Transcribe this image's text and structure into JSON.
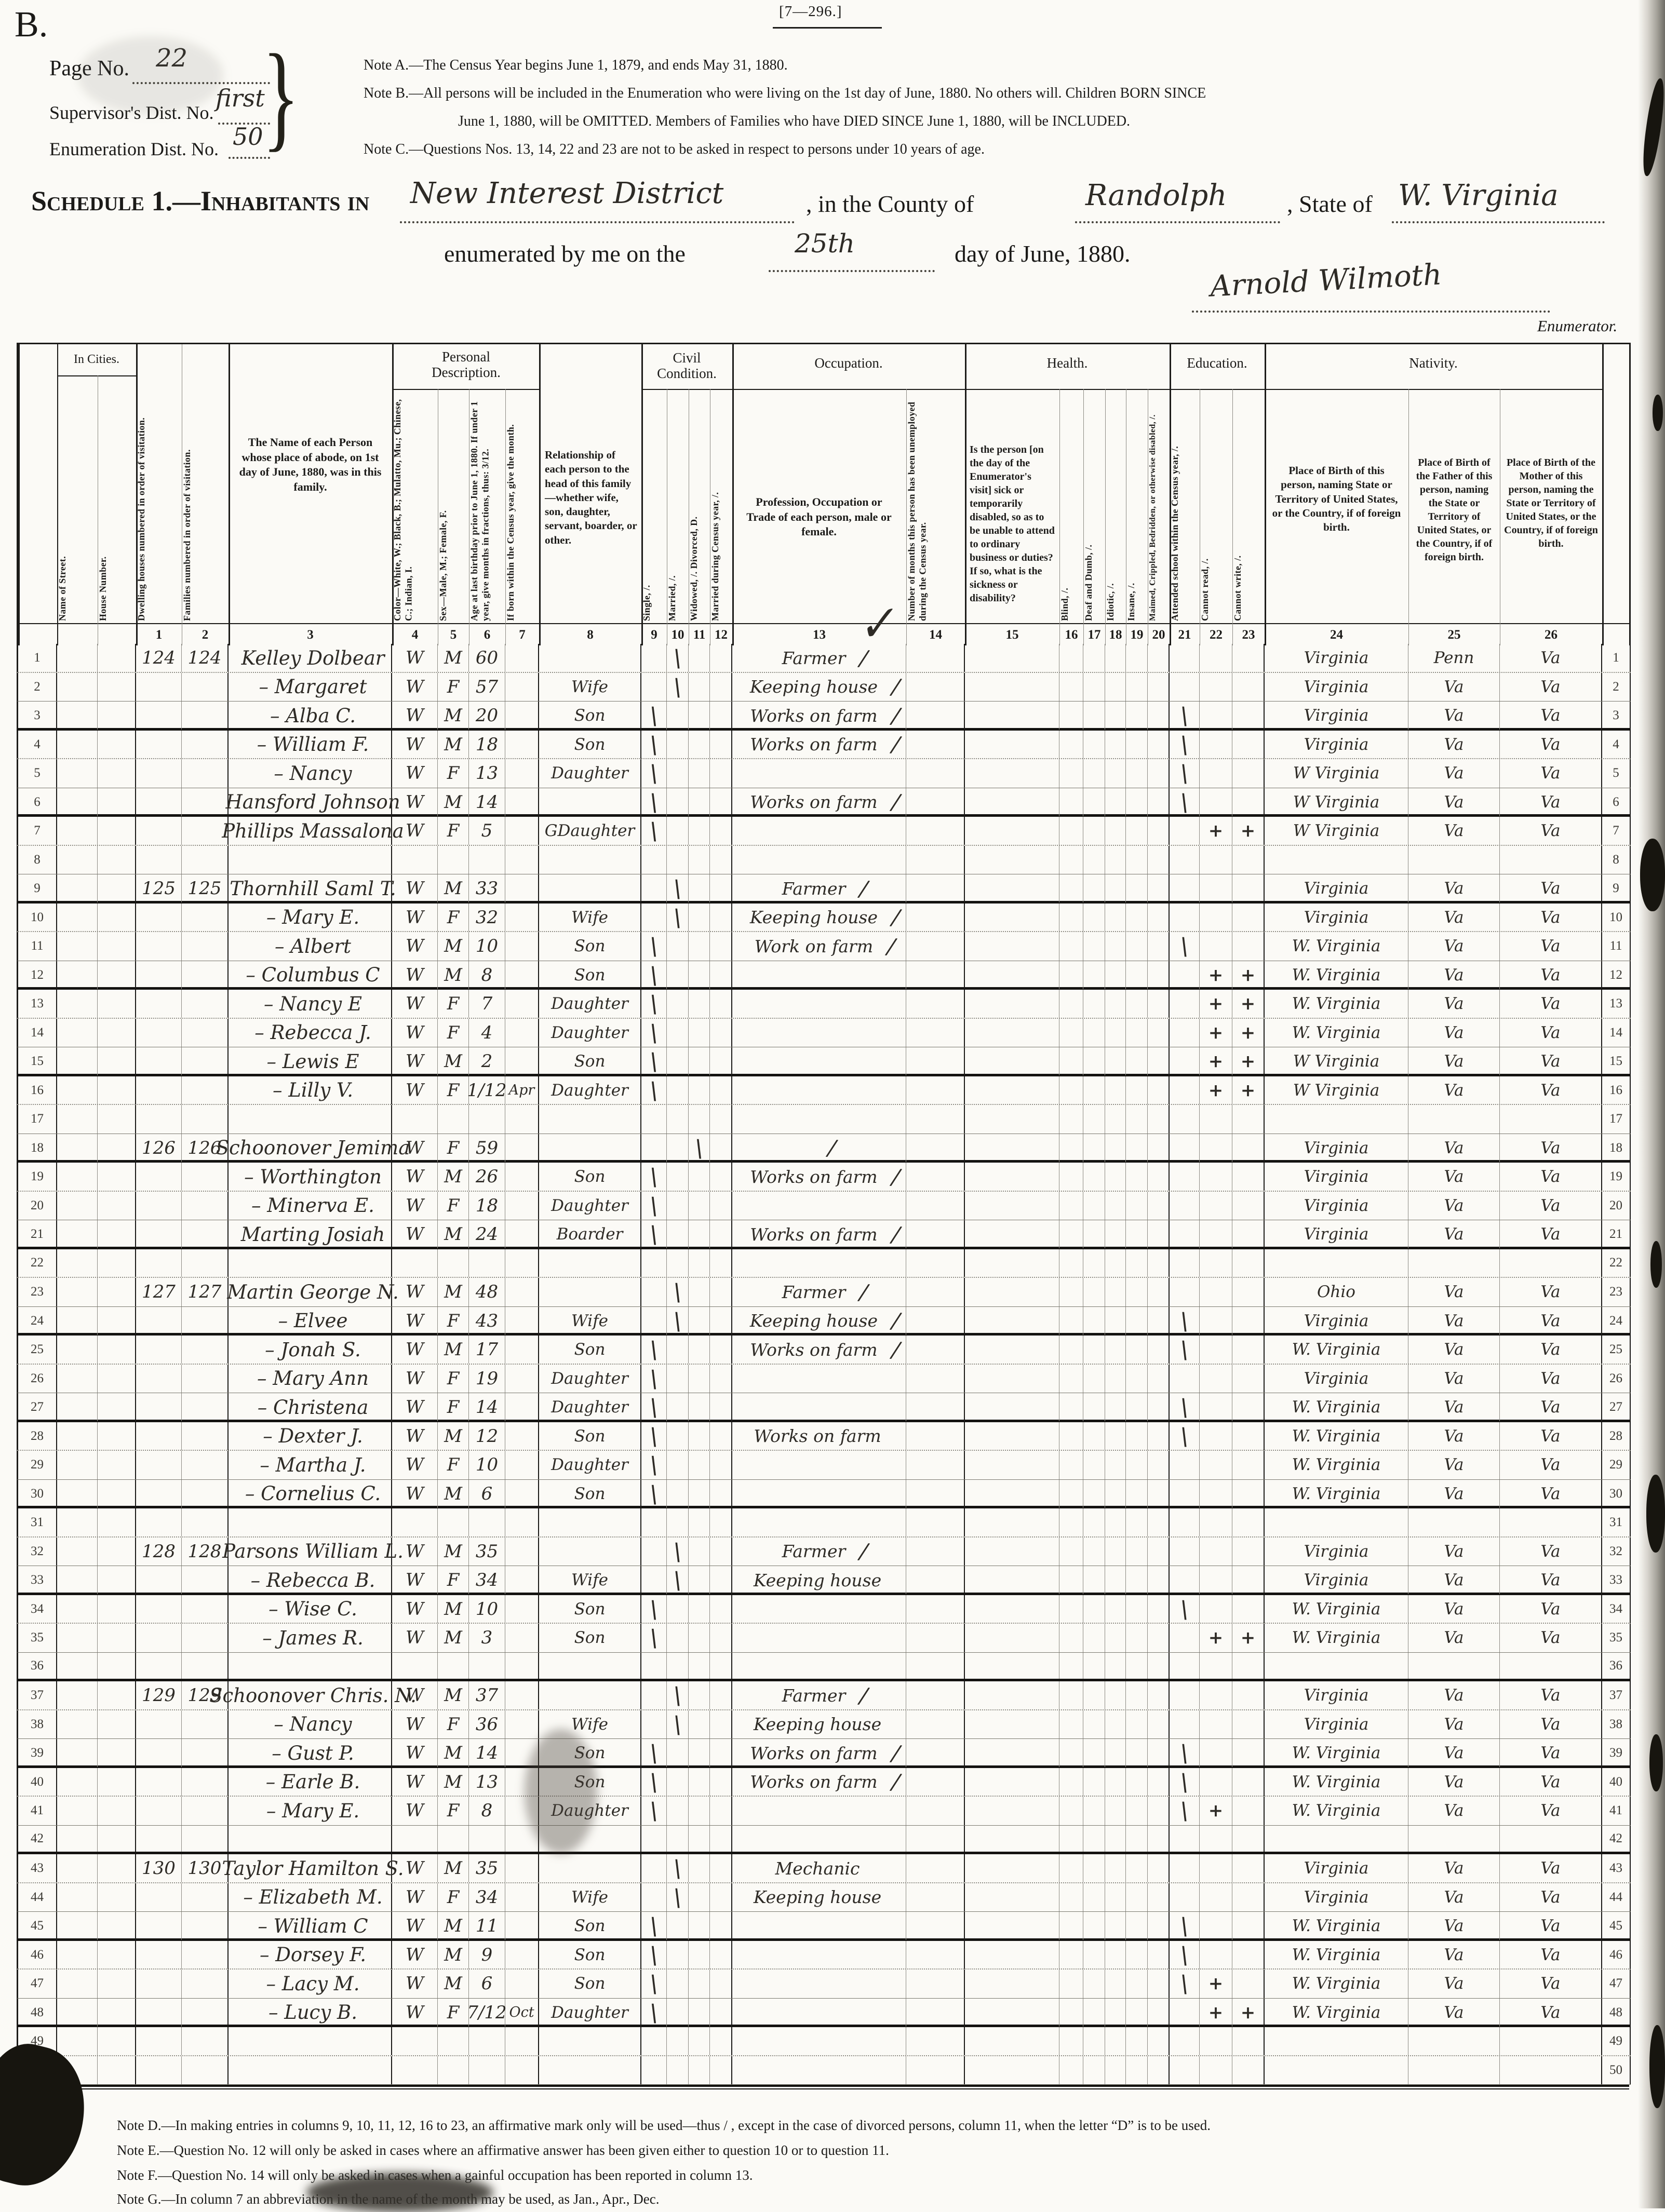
{
  "form": {
    "corner_letter": "B.",
    "form_number": "[7—296.]",
    "page_no_label": "Page No.",
    "page_no": "22",
    "supervisor_label": "Supervisor's Dist. No.",
    "supervisor_no": "first",
    "enumeration_label": "Enumeration Dist. No.",
    "enumeration_no": "50",
    "brace": "}",
    "note_a": "Note A.—The Census Year begins June 1, 1879, and ends May 31, 1880.",
    "note_b1": "Note B.—All persons will be included in the Enumeration who were living on the 1st day of June, 1880.  No others will.  Children BORN SINCE",
    "note_b2": "June 1, 1880, will be OMITTED.  Members of Families who have DIED SINCE June 1, 1880, will be INCLUDED.",
    "note_c": "Note C.—Questions Nos. 13, 14, 22 and 23 are not to be asked in respect to persons under 10 years of age.",
    "schedule_title": "Schedule 1.—Inhabitants in",
    "district": "New Interest District",
    "county_label": ", in the County of",
    "county": "Randolph",
    "state_label": ", State of",
    "state": "W. Virginia",
    "enumerated_label": "enumerated by me on the",
    "enumerated_day": "25th",
    "enumerated_label2": "day of June, 1880.",
    "signature": "Arnold Wilmoth",
    "enumerator_label": "Enumerator.",
    "stray_check": "✓"
  },
  "table": {
    "groups": {
      "in_cities": "In Cities.",
      "personal": "Personal Description.",
      "civil": "Civil Condition.",
      "occupation": "Occupation.",
      "health": "Health.",
      "education": "Education.",
      "nativity": "Nativity."
    },
    "columns": {
      "street": "Name of Street.",
      "house": "House Number.",
      "c1": "Dwelling houses numbered in order of visitation.",
      "c2": "Families numbered in order of visitation.",
      "c3": "The Name of each Person whose place of abode, on 1st day of June, 1880, was in this family.",
      "c4": "Color—White, W.; Black, B.; Mulatto, Mu.; Chinese, C.; Indian, I.",
      "c5": "Sex—Male, M.; Female, F.",
      "c6": "Age at last birthday prior to June 1, 1880.  If under 1 year, give months in fractions, thus: 3/12.",
      "c7": "If born within the Census year, give the month.",
      "c8": "Relationship of each person to the head of this family—whether wife, son, daughter, servant, boarder, or other.",
      "c9": "Single, /.",
      "c10": "Married, /.",
      "c11": "Widowed, /.  Divorced, D.",
      "c12": "Married during Census year, /.",
      "c13": "Profession, Occupation or Trade of each person, male or female.",
      "c14": "Number of months this person has been unemployed during the Census year.",
      "c15": "Is the person [on the day of the Enumerator's visit] sick or temporarily disabled, so as to be unable to attend to ordinary business or duties?  If so, what is the sickness or disability?",
      "c16": "Blind, /.",
      "c17": "Deaf and Dumb, /.",
      "c18": "Idiotic, /.",
      "c19": "Insane, /.",
      "c20": "Maimed, Crippled, Bedridden, or otherwise disabled, /.",
      "c21": "Attended school within the Census year, /.",
      "c22": "Cannot read, /.",
      "c23": "Cannot write, /.",
      "c24": "Place of Birth of this person, naming State or Territory of United States, or the Country, if of foreign birth.",
      "c25": "Place of Birth of the Father of this person, naming the State or Territory of United States, or the Country, if of foreign birth.",
      "c26": "Place of Birth of the Mother of this person, naming the State or Territory of United States, or the Country, if of foreign birth."
    },
    "numbers": [
      "1",
      "2",
      "3",
      "4",
      "5",
      "6",
      "7",
      "8",
      "9",
      "10",
      "11",
      "12",
      "13",
      "14",
      "15",
      "16",
      "17",
      "18",
      "19",
      "20",
      "21",
      "22",
      "23",
      "24",
      "25",
      "26"
    ],
    "rows": [
      {
        "n": "1",
        "dw": "124",
        "fam": "124",
        "name": "Kelley Dolbear",
        "c": "W",
        "s": "M",
        "a": "60",
        "m10": "\\",
        "occ": "Farmer",
        "ok": "/",
        "pb": "Virginia",
        "pf": "Penn",
        "pm": "Va"
      },
      {
        "n": "2",
        "name": "– Margaret",
        "c": "W",
        "s": "F",
        "a": "57",
        "rel": "Wife",
        "m10": "\\",
        "occ": "Keeping house",
        "ok": "/",
        "pb": "Virginia",
        "pf": "Va",
        "pm": "Va"
      },
      {
        "n": "3",
        "name": "– Alba C.",
        "c": "W",
        "s": "M",
        "a": "20",
        "rel": "Son",
        "m9": "\\",
        "occ": "Works on farm",
        "ok": "/",
        "s21": "\\",
        "pb": "Virginia",
        "pf": "Va",
        "pm": "Va"
      },
      {
        "n": "4",
        "name": "– William F.",
        "c": "W",
        "s": "M",
        "a": "18",
        "rel": "Son",
        "m9": "\\",
        "occ": "Works on farm",
        "ok": "/",
        "s21": "\\",
        "pb": "Virginia",
        "pf": "Va",
        "pm": "Va"
      },
      {
        "n": "5",
        "name": "– Nancy",
        "c": "W",
        "s": "F",
        "a": "13",
        "rel": "Daughter",
        "m9": "\\",
        "s21": "\\",
        "pb": "W Virginia",
        "pf": "Va",
        "pm": "Va"
      },
      {
        "n": "6",
        "name": "Hansford Johnson",
        "c": "W",
        "s": "M",
        "a": "14",
        "m9": "\\",
        "occ": "Works on farm",
        "ok": "/",
        "s21": "\\",
        "pb": "W Virginia",
        "pf": "Va",
        "pm": "Va"
      },
      {
        "n": "7",
        "name": "Phillips Massalona",
        "c": "W",
        "s": "F",
        "a": "5",
        "rel": "GDaughter",
        "m9": "\\",
        "r22": "+",
        "w23": "+",
        "pb": "W Virginia",
        "pf": "Va",
        "pm": "Va"
      },
      {
        "n": "8"
      },
      {
        "n": "9",
        "dw": "125",
        "fam": "125",
        "name": "Thornhill Saml T.",
        "c": "W",
        "s": "M",
        "a": "33",
        "m10": "\\",
        "occ": "Farmer",
        "ok": "/",
        "pb": "Virginia",
        "pf": "Va",
        "pm": "Va"
      },
      {
        "n": "10",
        "name": "– Mary E.",
        "c": "W",
        "s": "F",
        "a": "32",
        "rel": "Wife",
        "m10": "\\",
        "occ": "Keeping house",
        "ok": "/",
        "pb": "Virginia",
        "pf": "Va",
        "pm": "Va"
      },
      {
        "n": "11",
        "name": "– Albert",
        "c": "W",
        "s": "M",
        "a": "10",
        "rel": "Son",
        "m9": "\\",
        "occ": "Work on farm",
        "ok": "/",
        "s21": "\\",
        "pb": "W. Virginia",
        "pf": "Va",
        "pm": "Va"
      },
      {
        "n": "12",
        "name": "– Columbus C",
        "c": "W",
        "s": "M",
        "a": "8",
        "rel": "Son",
        "m9": "\\",
        "r22": "+",
        "w23": "+",
        "pb": "W. Virginia",
        "pf": "Va",
        "pm": "Va"
      },
      {
        "n": "13",
        "name": "– Nancy E",
        "c": "W",
        "s": "F",
        "a": "7",
        "rel": "Daughter",
        "m9": "\\",
        "r22": "+",
        "w23": "+",
        "pb": "W. Virginia",
        "pf": "Va",
        "pm": "Va"
      },
      {
        "n": "14",
        "name": "– Rebecca J.",
        "c": "W",
        "s": "F",
        "a": "4",
        "rel": "Daughter",
        "m9": "\\",
        "r22": "+",
        "w23": "+",
        "pb": "W. Virginia",
        "pf": "Va",
        "pm": "Va"
      },
      {
        "n": "15",
        "name": "– Lewis E",
        "c": "W",
        "s": "M",
        "a": "2",
        "rel": "Son",
        "m9": "\\",
        "r22": "+",
        "w23": "+",
        "pb": "W Virginia",
        "pf": "Va",
        "pm": "Va"
      },
      {
        "n": "16",
        "name": "– Lilly V.",
        "c": "W",
        "s": "F",
        "a": "1/12",
        "mo": "Apr",
        "rel": "Daughter",
        "m9": "\\",
        "r22": "+",
        "w23": "+",
        "pb": "W Virginia",
        "pf": "Va",
        "pm": "Va"
      },
      {
        "n": "17"
      },
      {
        "n": "18",
        "dw": "126",
        "fam": "126",
        "name": "Schoonover Jemima",
        "c": "W",
        "s": "F",
        "a": "59",
        "m11": "\\",
        "ok": "/",
        "pb": "Virginia",
        "pf": "Va",
        "pm": "Va"
      },
      {
        "n": "19",
        "name": "– Worthington",
        "c": "W",
        "s": "M",
        "a": "26",
        "rel": "Son",
        "m9": "\\",
        "occ": "Works on farm",
        "ok": "/",
        "pb": "Virginia",
        "pf": "Va",
        "pm": "Va"
      },
      {
        "n": "20",
        "name": "– Minerva E.",
        "c": "W",
        "s": "F",
        "a": "18",
        "rel": "Daughter",
        "m9": "\\",
        "pb": "Virginia",
        "pf": "Va",
        "pm": "Va"
      },
      {
        "n": "21",
        "name": "Marting Josiah",
        "c": "W",
        "s": "M",
        "a": "24",
        "rel": "Boarder",
        "m9": "\\",
        "occ": "Works on farm",
        "ok": "/",
        "pb": "Virginia",
        "pf": "Va",
        "pm": "Va"
      },
      {
        "n": "22"
      },
      {
        "n": "23",
        "dw": "127",
        "fam": "127",
        "name": "Martin George N.",
        "c": "W",
        "s": "M",
        "a": "48",
        "m10": "\\",
        "occ": "Farmer",
        "ok": "/",
        "pb": "Ohio",
        "pf": "Va",
        "pm": "Va"
      },
      {
        "n": "24",
        "name": "– Elvee",
        "c": "W",
        "s": "F",
        "a": "43",
        "rel": "Wife",
        "m10": "\\",
        "occ": "Keeping house",
        "ok": "/",
        "s21": "\\",
        "pb": "Virginia",
        "pf": "Va",
        "pm": "Va"
      },
      {
        "n": "25",
        "name": "– Jonah S.",
        "c": "W",
        "s": "M",
        "a": "17",
        "rel": "Son",
        "m9": "\\",
        "occ": "Works on farm",
        "ok": "/",
        "s21": "\\",
        "pb": "W. Virginia",
        "pf": "Va",
        "pm": "Va"
      },
      {
        "n": "26",
        "name": "– Mary Ann",
        "c": "W",
        "s": "F",
        "a": "19",
        "rel": "Daughter",
        "m9": "\\",
        "pb": "Virginia",
        "pf": "Va",
        "pm": "Va"
      },
      {
        "n": "27",
        "name": "– Christena",
        "c": "W",
        "s": "F",
        "a": "14",
        "rel": "Daughter",
        "m9": "\\",
        "s21": "\\",
        "pb": "W. Virginia",
        "pf": "Va",
        "pm": "Va"
      },
      {
        "n": "28",
        "name": "– Dexter J.",
        "c": "W",
        "s": "M",
        "a": "12",
        "rel": "Son",
        "m9": "\\",
        "occ": "Works on farm",
        "s21": "\\",
        "pb": "W. Virginia",
        "pf": "Va",
        "pm": "Va"
      },
      {
        "n": "29",
        "name": "– Martha J.",
        "c": "W",
        "s": "F",
        "a": "10",
        "rel": "Daughter",
        "m9": "\\",
        "pb": "W. Virginia",
        "pf": "Va",
        "pm": "Va"
      },
      {
        "n": "30",
        "name": "– Cornelius C.",
        "c": "W",
        "s": "M",
        "a": "6",
        "rel": "Son",
        "m9": "\\",
        "pb": "W. Virginia",
        "pf": "Va",
        "pm": "Va"
      },
      {
        "n": "31"
      },
      {
        "n": "32",
        "dw": "128",
        "fam": "128",
        "name": "Parsons William L.",
        "c": "W",
        "s": "M",
        "a": "35",
        "m10": "\\",
        "occ": "Farmer",
        "ok": "/",
        "pb": "Virginia",
        "pf": "Va",
        "pm": "Va"
      },
      {
        "n": "33",
        "name": "– Rebecca B.",
        "c": "W",
        "s": "F",
        "a": "34",
        "rel": "Wife",
        "m10": "\\",
        "occ": "Keeping house",
        "pb": "Virginia",
        "pf": "Va",
        "pm": "Va"
      },
      {
        "n": "34",
        "name": "– Wise C.",
        "c": "W",
        "s": "M",
        "a": "10",
        "rel": "Son",
        "m9": "\\",
        "s21": "\\",
        "pb": "W. Virginia",
        "pf": "Va",
        "pm": "Va"
      },
      {
        "n": "35",
        "name": "– James R.",
        "c": "W",
        "s": "M",
        "a": "3",
        "rel": "Son",
        "m9": "\\",
        "r22": "+",
        "w23": "+",
        "pb": "W. Virginia",
        "pf": "Va",
        "pm": "Va"
      },
      {
        "n": "36"
      },
      {
        "n": "37",
        "dw": "129",
        "fam": "129",
        "name": "Schoonover Chris. N.",
        "c": "W",
        "s": "M",
        "a": "37",
        "m10": "\\",
        "occ": "Farmer",
        "ok": "/",
        "pb": "Virginia",
        "pf": "Va",
        "pm": "Va"
      },
      {
        "n": "38",
        "name": "– Nancy",
        "c": "W",
        "s": "F",
        "a": "36",
        "rel": "Wife",
        "m10": "\\",
        "occ": "Keeping house",
        "pb": "Virginia",
        "pf": "Va",
        "pm": "Va"
      },
      {
        "n": "39",
        "name": "– Gust P.",
        "c": "W",
        "s": "M",
        "a": "14",
        "rel": "Son",
        "m9": "\\",
        "occ": "Works on farm",
        "ok": "/",
        "s21": "\\",
        "pb": "W. Virginia",
        "pf": "Va",
        "pm": "Va"
      },
      {
        "n": "40",
        "name": "– Earle B.",
        "c": "W",
        "s": "M",
        "a": "13",
        "rel": "Son",
        "m9": "\\",
        "occ": "Works on farm",
        "ok": "/",
        "s21": "\\",
        "pb": "W. Virginia",
        "pf": "Va",
        "pm": "Va"
      },
      {
        "n": "41",
        "name": "– Mary E.",
        "c": "W",
        "s": "F",
        "a": "8",
        "rel": "Daughter",
        "m9": "\\",
        "s21": "\\",
        "r22": "+",
        "pb": "W. Virginia",
        "pf": "Va",
        "pm": "Va"
      },
      {
        "n": "42"
      },
      {
        "n": "43",
        "dw": "130",
        "fam": "130",
        "name": "Taylor Hamilton S.",
        "c": "W",
        "s": "M",
        "a": "35",
        "m10": "\\",
        "occ": "Mechanic",
        "pb": "Virginia",
        "pf": "Va",
        "pm": "Va"
      },
      {
        "n": "44",
        "name": "– Elizabeth M.",
        "c": "W",
        "s": "F",
        "a": "34",
        "rel": "Wife",
        "m10": "\\",
        "occ": "Keeping house",
        "pb": "Virginia",
        "pf": "Va",
        "pm": "Va"
      },
      {
        "n": "45",
        "name": "– William C",
        "c": "W",
        "s": "M",
        "a": "11",
        "rel": "Son",
        "m9": "\\",
        "s21": "\\",
        "pb": "W. Virginia",
        "pf": "Va",
        "pm": "Va"
      },
      {
        "n": "46",
        "name": "– Dorsey F.",
        "c": "W",
        "s": "M",
        "a": "9",
        "rel": "Son",
        "m9": "\\",
        "s21": "\\",
        "pb": "W. Virginia",
        "pf": "Va",
        "pm": "Va"
      },
      {
        "n": "47",
        "name": "– Lacy M.",
        "c": "W",
        "s": "M",
        "a": "6",
        "rel": "Son",
        "m9": "\\",
        "s21": "\\",
        "r22": "+",
        "pb": "W. Virginia",
        "pf": "Va",
        "pm": "Va"
      },
      {
        "n": "48",
        "name": "– Lucy B.",
        "c": "W",
        "s": "F",
        "a": "7/12",
        "mo": "Oct",
        "rel": "Daughter",
        "m9": "\\",
        "r22": "+",
        "w23": "+",
        "pb": "W. Virginia",
        "pf": "Va",
        "pm": "Va"
      },
      {
        "n": "49"
      },
      {
        "n": "50"
      }
    ]
  },
  "footnotes": {
    "d": "Note D.—In making entries in columns 9, 10, 11, 12, 16 to 23, an affirmative mark only will be used—thus / , except in the case of divorced persons, column 11, when the letter “D” is to be used.",
    "e": "Note E.—Question No. 12 will only be asked in cases where an affirmative answer has been given either to question 10 or to question 11.",
    "f": "Note F.—Question No. 14 will only be asked in cases when a gainful occupation has been reported in column 13.",
    "g": "Note G.—In column 7 an abbreviation in the name of the month may be used, as Jan., Apr., Dec."
  }
}
